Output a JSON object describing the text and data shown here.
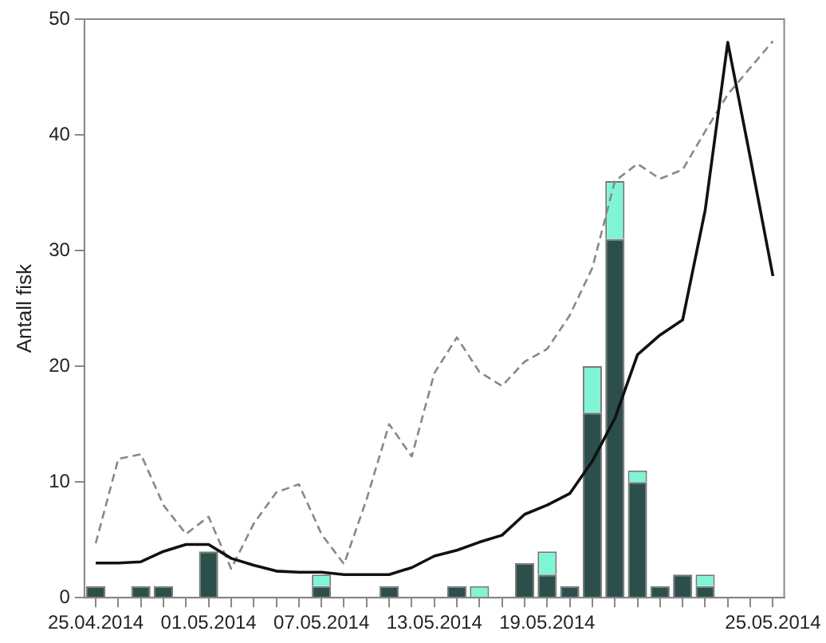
{
  "chart_data": {
    "type": "bar",
    "ylabel": "Antall fisk",
    "stacked": true,
    "grid": false,
    "legend": false,
    "marker": "none",
    "categories": [
      "25.04.2014",
      null,
      null,
      null,
      null,
      "01.05.2014",
      null,
      null,
      null,
      null,
      "07.05.2014",
      null,
      null,
      null,
      null,
      "13.05.2014",
      null,
      null,
      null,
      null,
      "19.05.2014",
      null,
      null,
      null,
      null,
      null,
      null,
      null,
      null,
      null,
      "25.05.2014"
    ],
    "ylim": [
      0,
      50
    ],
    "yticks": [
      0,
      10,
      20,
      30,
      40,
      50
    ],
    "series": [
      {
        "color": "#2d4f4c",
        "values": [
          1,
          null,
          1,
          1,
          null,
          4,
          null,
          null,
          null,
          null,
          1,
          null,
          null,
          1,
          null,
          null,
          1,
          null,
          null,
          3,
          2,
          1,
          16,
          31,
          10,
          1,
          2,
          1,
          null,
          null,
          null
        ]
      },
      {
        "color": "#80f5d5",
        "values": [
          null,
          null,
          null,
          null,
          null,
          null,
          null,
          null,
          null,
          null,
          1,
          null,
          null,
          null,
          null,
          null,
          null,
          1,
          null,
          null,
          2,
          null,
          4,
          5,
          1,
          null,
          null,
          1,
          null,
          null,
          null
        ]
      },
      {
        "type": "line",
        "color": "#111111",
        "line_style": "solid",
        "values": [
          3.0,
          3.0,
          3.1,
          4.0,
          4.6,
          4.6,
          3.4,
          2.8,
          2.3,
          2.2,
          2.2,
          2.0,
          2.0,
          2.0,
          2.6,
          3.6,
          4.1,
          4.8,
          5.4,
          7.2,
          8.0,
          9.0,
          11.8,
          15.5,
          21.0,
          22.7,
          24.0,
          33.5,
          48.0,
          38.0,
          27.8
        ]
      },
      {
        "type": "line",
        "color": "#888888",
        "line_style": "dashed",
        "values": [
          4.7,
          12.0,
          12.4,
          8.0,
          5.5,
          7.0,
          2.5,
          6.4,
          9.1,
          9.8,
          5.5,
          2.9,
          8.5,
          15.0,
          12.2,
          19.4,
          22.5,
          19.5,
          18.3,
          20.4,
          21.5,
          24.4,
          28.5,
          36.0,
          37.5,
          36.2,
          37.0,
          40.3,
          43.5,
          45.8,
          48.1
        ]
      }
    ]
  }
}
